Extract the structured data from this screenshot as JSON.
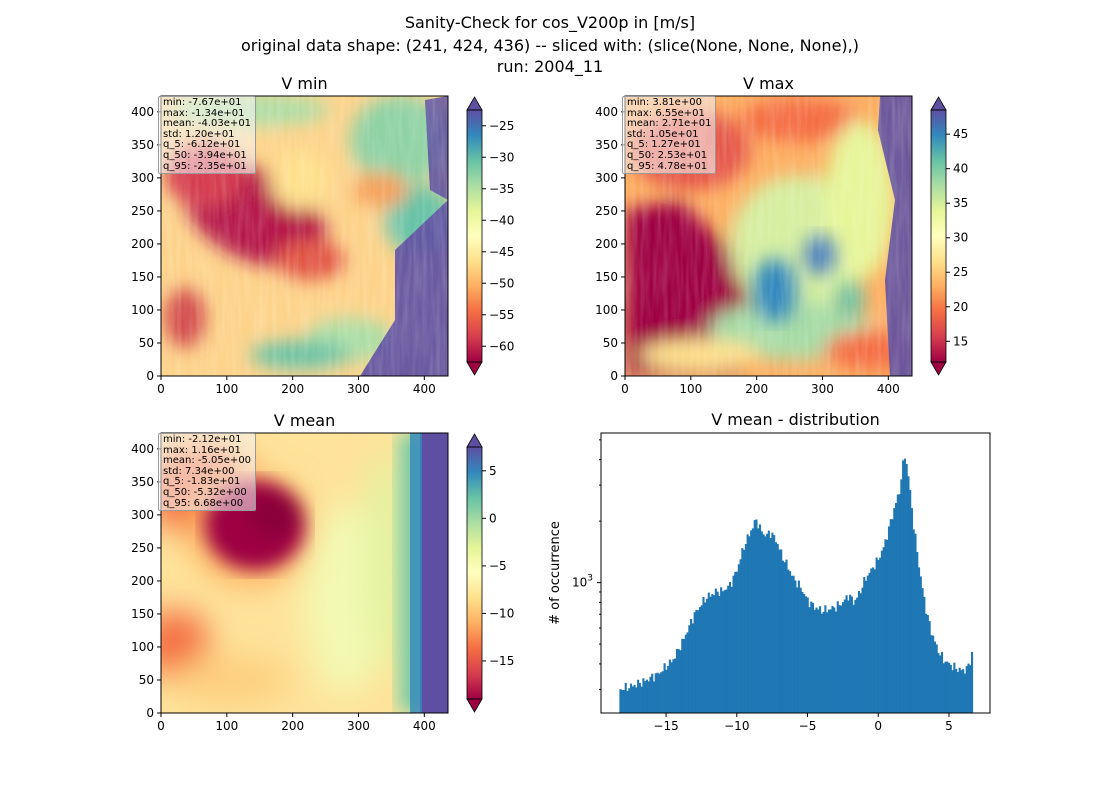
{
  "figure": {
    "title_lines": [
      "Sanity-Check for cos_V200p in [m/s]",
      "original data shape: (241, 424, 436) -- sliced with: (slice(None, None, None),)",
      "run: 2004_11"
    ]
  },
  "panels": [
    {
      "title": "V min",
      "stats": [
        "min: -7.67e+01",
        "max: -1.34e+01",
        "mean: -4.03e+01",
        "std: 1.20e+01",
        "q_5: -6.12e+01",
        "q_50: -3.94e+01",
        "q_95: -2.35e+01"
      ],
      "colorbar_ticks": [
        -25,
        -30,
        -35,
        -40,
        -45,
        -50,
        -55,
        -60
      ],
      "colorbar_range": [
        -62.5,
        -22.5
      ],
      "x_ticks": [
        0,
        100,
        200,
        300,
        400
      ],
      "y_ticks": [
        0,
        50,
        100,
        150,
        200,
        250,
        300,
        350,
        400
      ],
      "extent": [
        0,
        436,
        0,
        424
      ],
      "colormap": "Spectral",
      "colorbar_extend": "both"
    },
    {
      "title": "V max",
      "stats": [
        "min: 3.81e+00",
        "max: 6.55e+01",
        "mean: 2.71e+01",
        "std: 1.05e+01",
        "q_5: 1.27e+01",
        "q_50: 2.53e+01",
        "q_95: 4.78e+01"
      ],
      "colorbar_ticks": [
        45,
        40,
        35,
        30,
        25,
        20,
        15
      ],
      "colorbar_range": [
        12,
        48.5
      ],
      "x_ticks": [
        0,
        100,
        200,
        300,
        400
      ],
      "y_ticks": [
        0,
        50,
        100,
        150,
        200,
        250,
        300,
        350,
        400
      ],
      "extent": [
        0,
        436,
        0,
        424
      ],
      "colormap": "Spectral",
      "colorbar_extend": "both"
    },
    {
      "title": "V mean",
      "stats": [
        "min: -2.12e+01",
        "max: 1.16e+01",
        "mean: -5.05e+00",
        "std: 7.34e+00",
        "q_5: -1.83e+01",
        "q_50: -5.32e+00",
        "q_95: 6.68e+00"
      ],
      "colorbar_ticks": [
        5,
        0,
        -5,
        -10,
        -15
      ],
      "colorbar_range": [
        -19,
        7.5
      ],
      "x_ticks": [
        0,
        100,
        200,
        300,
        400
      ],
      "y_ticks": [
        0,
        50,
        100,
        150,
        200,
        250,
        300,
        350,
        400
      ],
      "extent": [
        0,
        436,
        0,
        424
      ],
      "colormap": "Spectral",
      "colorbar_extend": "both"
    }
  ],
  "chart_data": {
    "type": "bar",
    "title": "V mean - distribution",
    "xlabel": "",
    "ylabel": "# of occurrence",
    "yscale": "log",
    "y_tick_labels": [
      "10^3"
    ],
    "x_ticks": [
      -15,
      -10,
      -5,
      0,
      5
    ],
    "xlim": [
      -19.6,
      7.9
    ],
    "ylim": [
      230,
      5400
    ],
    "bar_color": "#1f77b4",
    "bin_range": [
      -18.3,
      6.68
    ],
    "profile": [
      [
        -18.3,
        300
      ],
      [
        -17.5,
        310
      ],
      [
        -16.5,
        330
      ],
      [
        -15.5,
        360
      ],
      [
        -14.5,
        420
      ],
      [
        -13.8,
        520
      ],
      [
        -13.0,
        700
      ],
      [
        -12.2,
        840
      ],
      [
        -11.5,
        900
      ],
      [
        -11.0,
        910
      ],
      [
        -10.5,
        970
      ],
      [
        -10.0,
        1150
      ],
      [
        -9.5,
        1500
      ],
      [
        -9.0,
        1800
      ],
      [
        -8.6,
        2050
      ],
      [
        -8.4,
        1850
      ],
      [
        -8.0,
        1700
      ],
      [
        -7.6,
        1760
      ],
      [
        -7.2,
        1600
      ],
      [
        -6.8,
        1350
      ],
      [
        -6.4,
        1200
      ],
      [
        -6.0,
        1050
      ],
      [
        -5.5,
        950
      ],
      [
        -5.0,
        820
      ],
      [
        -4.5,
        760
      ],
      [
        -4.0,
        730
      ],
      [
        -3.5,
        740
      ],
      [
        -3.0,
        760
      ],
      [
        -2.5,
        800
      ],
      [
        -2.1,
        870
      ],
      [
        -1.7,
        800
      ],
      [
        -1.3,
        900
      ],
      [
        -0.9,
        1050
      ],
      [
        -0.5,
        1150
      ],
      [
        0.0,
        1300
      ],
      [
        0.4,
        1500
      ],
      [
        0.8,
        1900
      ],
      [
        1.2,
        2400
      ],
      [
        1.5,
        2800
      ],
      [
        1.7,
        3600
      ],
      [
        1.9,
        4300
      ],
      [
        2.2,
        3000
      ],
      [
        2.5,
        1900
      ],
      [
        3.0,
        1050
      ],
      [
        3.4,
        720
      ],
      [
        3.8,
        560
      ],
      [
        4.2,
        470
      ],
      [
        4.6,
        420
      ],
      [
        5.0,
        400
      ],
      [
        5.5,
        380
      ],
      [
        6.0,
        370
      ],
      [
        6.4,
        390
      ],
      [
        6.68,
        470
      ]
    ]
  }
}
